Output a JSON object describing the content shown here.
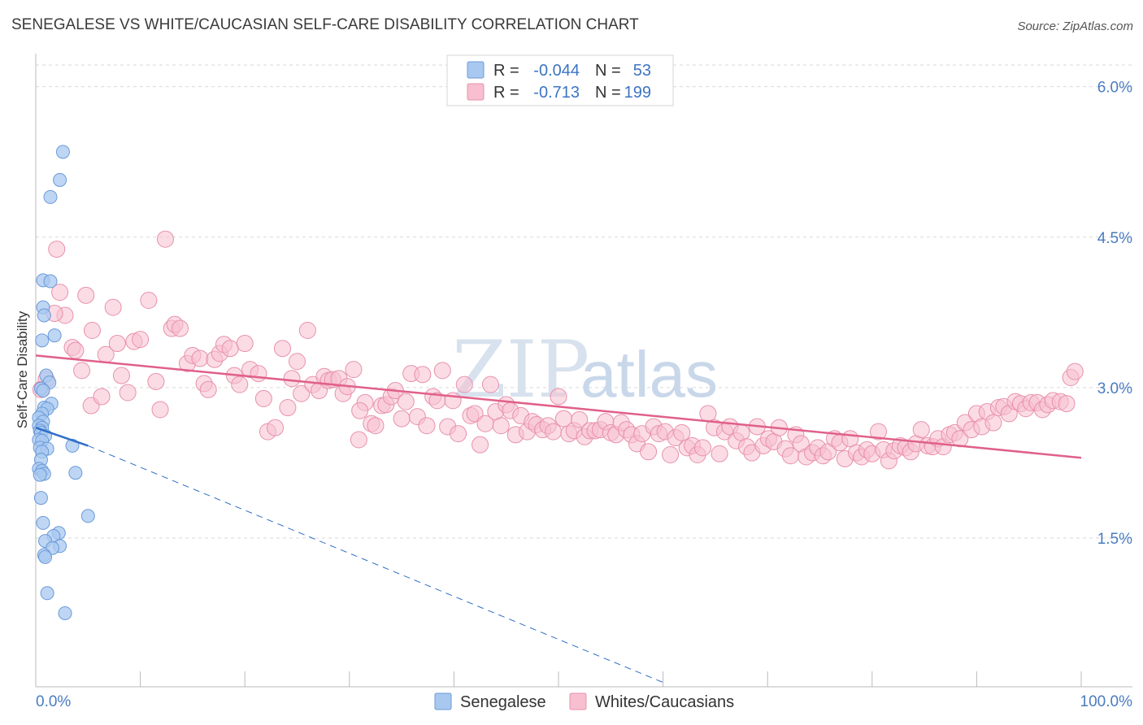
{
  "header": {
    "title": "SENEGALESE VS WHITE/CAUCASIAN SELF-CARE DISABILITY CORRELATION CHART",
    "source": "Source: ZipAtlas.com"
  },
  "watermark": {
    "zip": "ZIP",
    "atlas": "atlas"
  },
  "legend_top": {
    "rows": [
      {
        "r_label": "R =",
        "r_value": "-0.044",
        "n_label": "N =",
        "n_value": "53",
        "color": "#a8c8f0",
        "stroke": "#6a9ad8"
      },
      {
        "r_label": "R =",
        "r_value": "-0.713",
        "n_label": "N =",
        "n_value": "199",
        "color": "#f7bfd0",
        "stroke": "#e890ac"
      }
    ]
  },
  "legend_bottom": {
    "items": [
      {
        "label": "Senegalese",
        "color": "#a8c8f0",
        "stroke": "#6a9ad8"
      },
      {
        "label": "Whites/Caucasians",
        "color": "#f7bfd0",
        "stroke": "#e890ac"
      }
    ]
  },
  "chart_data": {
    "type": "scatter",
    "title": "SENEGALESE VS WHITE/CAUCASIAN SELF-CARE DISABILITY CORRELATION CHART",
    "xlabel": "",
    "ylabel": "Self-Care Disability",
    "xlim": [
      0,
      100
    ],
    "ylim": [
      0,
      6.2
    ],
    "x_tick_labels": [
      "0.0%",
      "100.0%"
    ],
    "y_ticks": [
      1.5,
      3.0,
      4.5,
      6.0
    ],
    "y_tick_labels": [
      "1.5%",
      "3.0%",
      "4.5%",
      "6.0%"
    ],
    "grid": true,
    "series": [
      {
        "name": "Senegalese",
        "color": "#a8c8f0",
        "stroke": "#6a9ad8",
        "trend": {
          "x0": 0.0,
          "y0": 2.6,
          "x1": 5.0,
          "y1": 2.42,
          "dash_x1": 60.0,
          "dash_y1": 0.06,
          "color": "#2f6fc8"
        },
        "points": [
          [
            2.6,
            5.35
          ],
          [
            2.3,
            5.07
          ],
          [
            1.4,
            4.9
          ],
          [
            0.7,
            4.07
          ],
          [
            1.4,
            4.06
          ],
          [
            0.7,
            3.8
          ],
          [
            0.8,
            3.72
          ],
          [
            1.8,
            3.52
          ],
          [
            0.6,
            3.47
          ],
          [
            1.0,
            3.12
          ],
          [
            1.3,
            3.05
          ],
          [
            0.5,
            2.99
          ],
          [
            0.7,
            2.97
          ],
          [
            1.5,
            2.84
          ],
          [
            0.8,
            2.8
          ],
          [
            1.1,
            2.79
          ],
          [
            0.6,
            2.74
          ],
          [
            0.3,
            2.7
          ],
          [
            0.7,
            2.66
          ],
          [
            0.3,
            2.62
          ],
          [
            0.6,
            2.6
          ],
          [
            0.4,
            2.57
          ],
          [
            0.5,
            2.55
          ],
          [
            0.9,
            2.52
          ],
          [
            0.3,
            2.48
          ],
          [
            0.6,
            2.47
          ],
          [
            3.5,
            2.42
          ],
          [
            0.4,
            2.4
          ],
          [
            1.1,
            2.39
          ],
          [
            0.6,
            2.36
          ],
          [
            0.5,
            2.28
          ],
          [
            0.3,
            2.19
          ],
          [
            0.6,
            2.17
          ],
          [
            0.8,
            2.14
          ],
          [
            0.4,
            2.13
          ],
          [
            3.8,
            2.15
          ],
          [
            0.5,
            1.9
          ],
          [
            5.0,
            1.72
          ],
          [
            0.7,
            1.65
          ],
          [
            2.2,
            1.55
          ],
          [
            1.7,
            1.52
          ],
          [
            0.9,
            1.47
          ],
          [
            2.3,
            1.42
          ],
          [
            1.6,
            1.4
          ],
          [
            0.8,
            1.33
          ],
          [
            0.9,
            1.31
          ],
          [
            1.1,
            0.95
          ],
          [
            2.8,
            0.75
          ]
        ]
      },
      {
        "name": "Whites/Caucasians",
        "color": "#f7bfd0",
        "stroke": "#e890ac",
        "trend": {
          "x0": 0.0,
          "y0": 3.32,
          "x1": 100.0,
          "y1": 2.3,
          "color": "#e0608a"
        },
        "points": [
          [
            1.0,
            3.08
          ],
          [
            0.5,
            2.98
          ],
          [
            2.0,
            4.38
          ],
          [
            2.3,
            3.95
          ],
          [
            2.8,
            3.72
          ],
          [
            1.8,
            3.74
          ],
          [
            3.5,
            3.4
          ],
          [
            3.8,
            3.37
          ],
          [
            4.4,
            3.17
          ],
          [
            4.8,
            3.92
          ],
          [
            5.4,
            3.57
          ],
          [
            5.3,
            2.82
          ],
          [
            6.3,
            2.91
          ],
          [
            6.7,
            3.33
          ],
          [
            7.4,
            3.8
          ],
          [
            7.8,
            3.44
          ],
          [
            8.2,
            3.12
          ],
          [
            8.8,
            2.95
          ],
          [
            9.4,
            3.46
          ],
          [
            10.0,
            3.48
          ],
          [
            10.8,
            3.87
          ],
          [
            11.5,
            3.06
          ],
          [
            11.9,
            2.78
          ],
          [
            12.4,
            4.48
          ],
          [
            13.0,
            3.59
          ],
          [
            13.3,
            3.63
          ],
          [
            13.8,
            3.59
          ],
          [
            14.5,
            3.24
          ],
          [
            15.0,
            3.32
          ],
          [
            15.7,
            3.29
          ],
          [
            16.1,
            3.04
          ],
          [
            16.5,
            2.98
          ],
          [
            17.1,
            3.28
          ],
          [
            17.6,
            3.34
          ],
          [
            18.0,
            3.43
          ],
          [
            18.6,
            3.39
          ],
          [
            19.0,
            3.12
          ],
          [
            19.5,
            3.03
          ],
          [
            20.0,
            3.44
          ],
          [
            20.5,
            3.18
          ],
          [
            21.3,
            3.14
          ],
          [
            21.8,
            2.89
          ],
          [
            22.2,
            2.56
          ],
          [
            22.9,
            2.6
          ],
          [
            23.6,
            3.39
          ],
          [
            24.1,
            2.8
          ],
          [
            24.5,
            3.09
          ],
          [
            25.0,
            3.26
          ],
          [
            25.4,
            2.94
          ],
          [
            26.0,
            3.57
          ],
          [
            26.5,
            3.03
          ],
          [
            27.1,
            2.97
          ],
          [
            27.6,
            3.11
          ],
          [
            28.0,
            3.07
          ],
          [
            28.4,
            3.08
          ],
          [
            29.0,
            3.09
          ],
          [
            29.4,
            2.94
          ],
          [
            29.8,
            3.01
          ],
          [
            30.4,
            3.18
          ],
          [
            30.9,
            2.48
          ],
          [
            31.5,
            2.85
          ],
          [
            32.1,
            2.64
          ],
          [
            32.5,
            2.62
          ],
          [
            33.1,
            2.82
          ],
          [
            33.5,
            2.83
          ],
          [
            34.0,
            2.91
          ],
          [
            34.4,
            2.97
          ],
          [
            35.0,
            2.69
          ],
          [
            35.4,
            2.86
          ],
          [
            35.9,
            3.14
          ],
          [
            36.5,
            2.71
          ],
          [
            37.0,
            3.13
          ],
          [
            37.4,
            2.62
          ],
          [
            38.0,
            2.91
          ],
          [
            38.4,
            2.87
          ],
          [
            38.9,
            3.17
          ],
          [
            39.4,
            2.61
          ],
          [
            39.9,
            2.87
          ],
          [
            40.4,
            2.54
          ],
          [
            41.0,
            3.03
          ],
          [
            41.6,
            2.72
          ],
          [
            42.0,
            2.74
          ],
          [
            42.5,
            2.43
          ],
          [
            43.0,
            2.64
          ],
          [
            43.5,
            3.03
          ],
          [
            44.0,
            2.76
          ],
          [
            44.5,
            2.62
          ],
          [
            45.0,
            2.83
          ],
          [
            45.4,
            2.77
          ],
          [
            45.9,
            2.53
          ],
          [
            46.4,
            2.72
          ],
          [
            47.0,
            2.56
          ],
          [
            47.5,
            2.66
          ],
          [
            47.9,
            2.63
          ],
          [
            48.5,
            2.58
          ],
          [
            49.0,
            2.62
          ],
          [
            49.5,
            2.56
          ],
          [
            50.0,
            2.91
          ],
          [
            50.5,
            2.69
          ],
          [
            51.0,
            2.54
          ],
          [
            51.5,
            2.57
          ],
          [
            52.0,
            2.68
          ],
          [
            52.5,
            2.51
          ],
          [
            53.0,
            2.57
          ],
          [
            53.5,
            2.57
          ],
          [
            54.0,
            2.58
          ],
          [
            54.5,
            2.66
          ],
          [
            55.0,
            2.55
          ],
          [
            55.5,
            2.53
          ],
          [
            56.0,
            2.65
          ],
          [
            56.5,
            2.58
          ],
          [
            57.0,
            2.53
          ],
          [
            57.5,
            2.44
          ],
          [
            58.0,
            2.54
          ],
          [
            58.6,
            2.36
          ],
          [
            59.1,
            2.61
          ],
          [
            59.6,
            2.54
          ],
          [
            60.2,
            2.56
          ],
          [
            60.7,
            2.33
          ],
          [
            61.2,
            2.5
          ],
          [
            61.8,
            2.55
          ],
          [
            62.3,
            2.4
          ],
          [
            62.8,
            2.42
          ],
          [
            63.3,
            2.33
          ],
          [
            63.8,
            2.4
          ],
          [
            64.3,
            2.74
          ],
          [
            64.9,
            2.6
          ],
          [
            65.4,
            2.34
          ],
          [
            65.9,
            2.56
          ],
          [
            66.4,
            2.61
          ],
          [
            67.0,
            2.47
          ],
          [
            67.5,
            2.55
          ],
          [
            68.0,
            2.41
          ],
          [
            68.5,
            2.35
          ],
          [
            69.0,
            2.61
          ],
          [
            69.6,
            2.42
          ],
          [
            70.1,
            2.49
          ],
          [
            70.6,
            2.46
          ],
          [
            71.1,
            2.6
          ],
          [
            71.7,
            2.39
          ],
          [
            72.2,
            2.32
          ],
          [
            72.7,
            2.53
          ],
          [
            73.2,
            2.44
          ],
          [
            73.7,
            2.31
          ],
          [
            74.3,
            2.35
          ],
          [
            74.8,
            2.4
          ],
          [
            75.3,
            2.32
          ],
          [
            75.8,
            2.36
          ],
          [
            76.4,
            2.49
          ],
          [
            76.9,
            2.45
          ],
          [
            77.4,
            2.29
          ],
          [
            77.9,
            2.49
          ],
          [
            78.5,
            2.35
          ],
          [
            79.0,
            2.31
          ],
          [
            79.5,
            2.38
          ],
          [
            80.0,
            2.34
          ],
          [
            80.6,
            2.56
          ],
          [
            81.1,
            2.38
          ],
          [
            81.6,
            2.27
          ],
          [
            82.1,
            2.37
          ],
          [
            82.7,
            2.42
          ],
          [
            83.2,
            2.4
          ],
          [
            83.7,
            2.36
          ],
          [
            84.2,
            2.44
          ],
          [
            84.7,
            2.58
          ],
          [
            85.3,
            2.42
          ],
          [
            85.8,
            2.41
          ],
          [
            86.3,
            2.49
          ],
          [
            86.8,
            2.41
          ],
          [
            87.4,
            2.53
          ],
          [
            87.9,
            2.55
          ],
          [
            88.4,
            2.49
          ],
          [
            88.9,
            2.65
          ],
          [
            89.5,
            2.58
          ],
          [
            90.0,
            2.74
          ],
          [
            90.5,
            2.61
          ],
          [
            91.0,
            2.76
          ],
          [
            91.6,
            2.65
          ],
          [
            92.1,
            2.8
          ],
          [
            92.6,
            2.81
          ],
          [
            93.1,
            2.74
          ],
          [
            93.7,
            2.86
          ],
          [
            94.2,
            2.84
          ],
          [
            94.7,
            2.79
          ],
          [
            95.2,
            2.85
          ],
          [
            95.8,
            2.85
          ],
          [
            96.3,
            2.78
          ],
          [
            96.8,
            2.83
          ],
          [
            97.3,
            2.87
          ],
          [
            98.0,
            2.86
          ],
          [
            98.6,
            2.84
          ],
          [
            99.0,
            3.1
          ],
          [
            99.4,
            3.16
          ],
          [
            31.0,
            2.77
          ]
        ]
      }
    ]
  }
}
